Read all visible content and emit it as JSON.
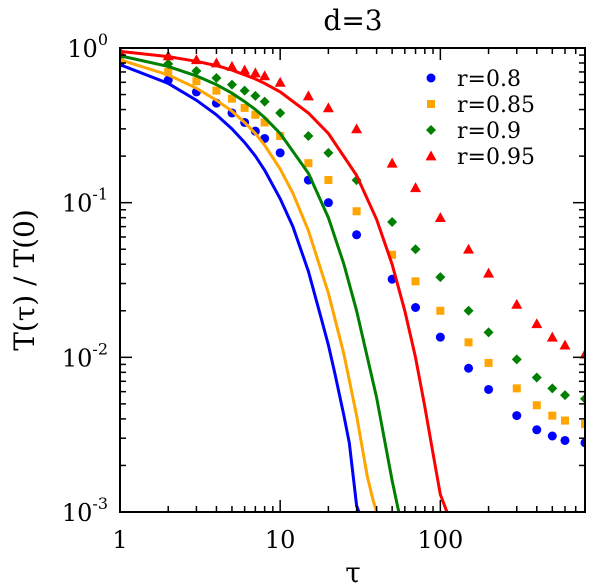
{
  "chart_data": {
    "type": "scatter",
    "title": "d=3",
    "xlabel": "τ",
    "ylabel": "T(τ) / T(0)",
    "xscale": "log",
    "yscale": "log",
    "xlim": [
      1,
      800
    ],
    "ylim": [
      0.001,
      1
    ],
    "x_ticks": [
      {
        "value": 1,
        "label": "1"
      },
      {
        "value": 10,
        "label": "10"
      },
      {
        "value": 100,
        "label": "100"
      }
    ],
    "y_ticks": [
      {
        "value": 1,
        "base": "10",
        "exp": "0"
      },
      {
        "value": 0.1,
        "base": "10",
        "exp": "-1"
      },
      {
        "value": 0.01,
        "base": "10",
        "exp": "-2"
      },
      {
        "value": 0.001,
        "base": "10",
        "exp": "-3"
      }
    ],
    "grid": false,
    "legend_position": "top-right",
    "series": [
      {
        "name": "r=0.8",
        "color": "#0000ff",
        "marker": "circle",
        "points": [
          [
            1,
            0.8
          ],
          [
            2,
            0.62
          ],
          [
            3,
            0.52
          ],
          [
            4,
            0.44
          ],
          [
            5,
            0.38
          ],
          [
            6,
            0.33
          ],
          [
            7,
            0.29
          ],
          [
            8,
            0.26
          ],
          [
            10,
            0.21
          ],
          [
            15,
            0.14
          ],
          [
            20,
            0.1
          ],
          [
            30,
            0.062
          ],
          [
            50,
            0.032
          ],
          [
            70,
            0.021
          ],
          [
            100,
            0.0135
          ],
          [
            150,
            0.0085
          ],
          [
            200,
            0.0062
          ],
          [
            300,
            0.0042
          ],
          [
            400,
            0.0034
          ],
          [
            500,
            0.0031
          ],
          [
            600,
            0.0029
          ],
          [
            800,
            0.0028
          ]
        ],
        "fit": [
          [
            1,
            0.78
          ],
          [
            2,
            0.59
          ],
          [
            3,
            0.46
          ],
          [
            4,
            0.37
          ],
          [
            5,
            0.3
          ],
          [
            6,
            0.245
          ],
          [
            7,
            0.2
          ],
          [
            8,
            0.162
          ],
          [
            10,
            0.106
          ],
          [
            12,
            0.07
          ],
          [
            15,
            0.036
          ],
          [
            18,
            0.018
          ],
          [
            20,
            0.012
          ],
          [
            22,
            0.0078
          ],
          [
            25,
            0.0042
          ],
          [
            27,
            0.0028
          ],
          [
            29,
            0.0015
          ],
          [
            30,
            0.0011
          ],
          [
            31,
            0.001
          ]
        ]
      },
      {
        "name": "r=0.85",
        "color": "#ffa500",
        "marker": "square",
        "points": [
          [
            1,
            0.85
          ],
          [
            2,
            0.7
          ],
          [
            3,
            0.61
          ],
          [
            4,
            0.53
          ],
          [
            5,
            0.47
          ],
          [
            6,
            0.41
          ],
          [
            7,
            0.37
          ],
          [
            8,
            0.33
          ],
          [
            10,
            0.27
          ],
          [
            15,
            0.18
          ],
          [
            20,
            0.14
          ],
          [
            30,
            0.088
          ],
          [
            50,
            0.046
          ],
          [
            70,
            0.031
          ],
          [
            100,
            0.02
          ],
          [
            150,
            0.0125
          ],
          [
            200,
            0.0092
          ],
          [
            300,
            0.0063
          ],
          [
            400,
            0.0049
          ],
          [
            500,
            0.0042
          ],
          [
            600,
            0.0039
          ],
          [
            800,
            0.0037
          ]
        ],
        "fit": [
          [
            1,
            0.84
          ],
          [
            2,
            0.67
          ],
          [
            3,
            0.55
          ],
          [
            4,
            0.46
          ],
          [
            5,
            0.39
          ],
          [
            6,
            0.33
          ],
          [
            7,
            0.28
          ],
          [
            8,
            0.235
          ],
          [
            10,
            0.165
          ],
          [
            12,
            0.115
          ],
          [
            15,
            0.066
          ],
          [
            20,
            0.026
          ],
          [
            25,
            0.0105
          ],
          [
            30,
            0.0042
          ],
          [
            35,
            0.0017
          ],
          [
            38,
            0.0012
          ],
          [
            40,
            0.001
          ]
        ]
      },
      {
        "name": "r=0.9",
        "color": "#008000",
        "marker": "diamond",
        "points": [
          [
            1,
            0.9
          ],
          [
            2,
            0.79
          ],
          [
            3,
            0.71
          ],
          [
            4,
            0.64
          ],
          [
            5,
            0.58
          ],
          [
            6,
            0.53
          ],
          [
            7,
            0.49
          ],
          [
            8,
            0.45
          ],
          [
            10,
            0.38
          ],
          [
            15,
            0.27
          ],
          [
            20,
            0.21
          ],
          [
            30,
            0.14
          ],
          [
            50,
            0.075
          ],
          [
            70,
            0.05
          ],
          [
            100,
            0.033
          ],
          [
            150,
            0.02
          ],
          [
            200,
            0.0145
          ],
          [
            300,
            0.0097
          ],
          [
            400,
            0.0074
          ],
          [
            500,
            0.0063
          ],
          [
            600,
            0.0057
          ],
          [
            800,
            0.0054
          ]
        ],
        "fit": [
          [
            1,
            0.89
          ],
          [
            2,
            0.76
          ],
          [
            3,
            0.66
          ],
          [
            4,
            0.58
          ],
          [
            5,
            0.51
          ],
          [
            6,
            0.45
          ],
          [
            7,
            0.4
          ],
          [
            8,
            0.355
          ],
          [
            10,
            0.28
          ],
          [
            15,
            0.155
          ],
          [
            20,
            0.08
          ],
          [
            25,
            0.04
          ],
          [
            30,
            0.02
          ],
          [
            40,
            0.0055
          ],
          [
            50,
            0.0016
          ],
          [
            55,
            0.001
          ]
        ]
      },
      {
        "name": "r=0.95",
        "color": "#ff0000",
        "marker": "triangle",
        "points": [
          [
            1,
            0.95
          ],
          [
            2,
            0.89
          ],
          [
            3,
            0.84
          ],
          [
            4,
            0.8
          ],
          [
            5,
            0.76
          ],
          [
            6,
            0.72
          ],
          [
            7,
            0.69
          ],
          [
            8,
            0.66
          ],
          [
            10,
            0.6
          ],
          [
            15,
            0.49
          ],
          [
            20,
            0.41
          ],
          [
            30,
            0.3
          ],
          [
            50,
            0.18
          ],
          [
            70,
            0.125
          ],
          [
            100,
            0.08
          ],
          [
            150,
            0.05
          ],
          [
            200,
            0.035
          ],
          [
            300,
            0.022
          ],
          [
            400,
            0.0165
          ],
          [
            500,
            0.0135
          ],
          [
            600,
            0.012
          ],
          [
            800,
            0.0105
          ]
        ],
        "fit": [
          [
            1,
            0.95
          ],
          [
            2,
            0.88
          ],
          [
            3,
            0.82
          ],
          [
            4,
            0.77
          ],
          [
            5,
            0.72
          ],
          [
            6,
            0.67
          ],
          [
            7,
            0.63
          ],
          [
            8,
            0.59
          ],
          [
            10,
            0.52
          ],
          [
            15,
            0.38
          ],
          [
            20,
            0.28
          ],
          [
            30,
            0.15
          ],
          [
            40,
            0.078
          ],
          [
            50,
            0.04
          ],
          [
            60,
            0.02
          ],
          [
            70,
            0.01
          ],
          [
            80,
            0.0048
          ],
          [
            90,
            0.0024
          ],
          [
            100,
            0.0013
          ],
          [
            110,
            0.001
          ]
        ]
      }
    ]
  }
}
